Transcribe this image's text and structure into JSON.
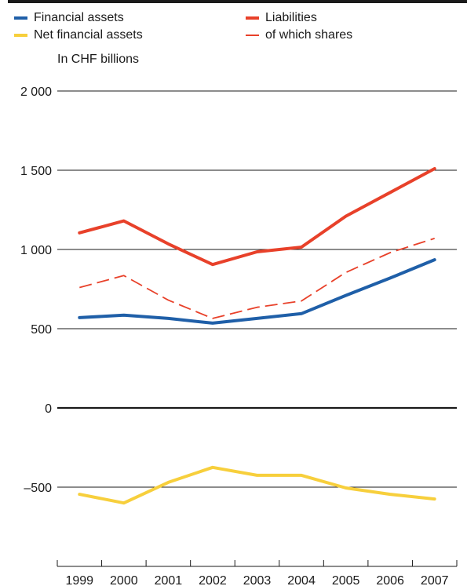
{
  "chart_data": {
    "type": "line",
    "unit_label": "In CHF billions",
    "x": [
      "1999",
      "2000",
      "2001",
      "2002",
      "2003",
      "2004",
      "2005",
      "2006",
      "2007"
    ],
    "ylim": [
      -1000,
      2000
    ],
    "yticks": [
      2000,
      1500,
      1000,
      500,
      0,
      -500
    ],
    "ytick_labels": [
      "2 000",
      "1 500",
      "1 000",
      "500",
      "0",
      "–500"
    ],
    "grid": true,
    "legend_position": "top",
    "series": [
      {
        "name": "Financial assets",
        "color": "#1f5fa8",
        "style": "solid-thick",
        "values": [
          570,
          585,
          565,
          535,
          565,
          595,
          710,
          820,
          935
        ]
      },
      {
        "name": "Liabilities",
        "color": "#e8412a",
        "style": "solid-thick",
        "values": [
          1105,
          1180,
          1035,
          905,
          985,
          1015,
          1210,
          1360,
          1510
        ]
      },
      {
        "name": "Net financial assets",
        "color": "#f7cf3c",
        "style": "solid-thick",
        "values": [
          -545,
          -600,
          -470,
          -375,
          -425,
          -425,
          -505,
          -545,
          -575
        ]
      },
      {
        "name": "of which shares",
        "color": "#e8412a",
        "style": "dashed-thin",
        "values": [
          760,
          835,
          680,
          565,
          635,
          675,
          855,
          980,
          1070
        ]
      }
    ]
  }
}
